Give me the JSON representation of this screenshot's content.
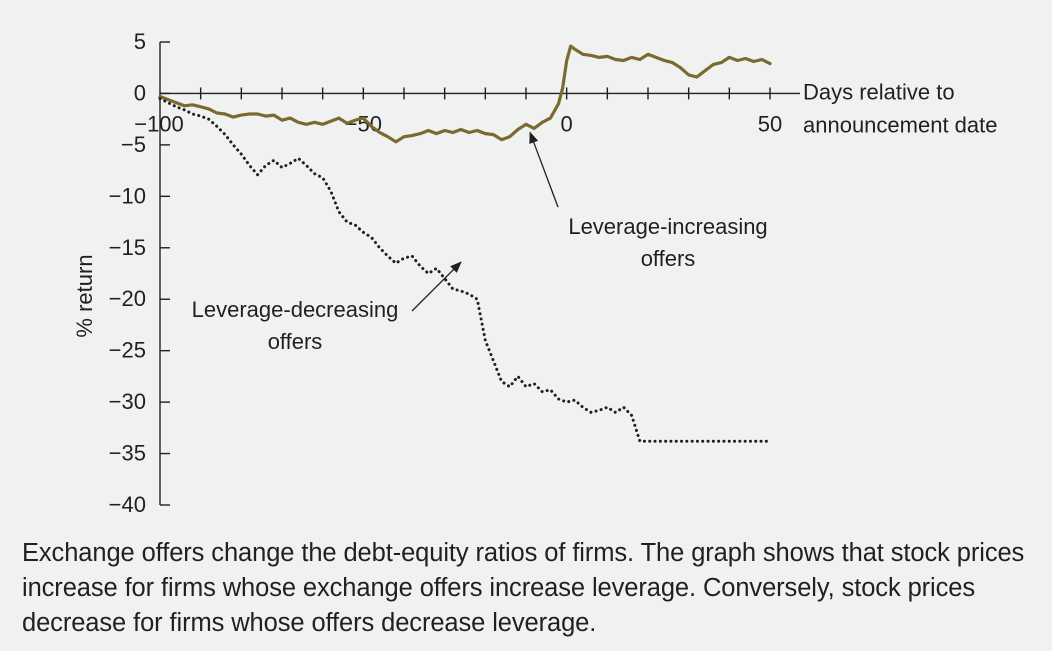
{
  "chart_data": {
    "type": "line",
    "title": "",
    "xlabel": "Days relative to announcement date",
    "ylabel": "% return",
    "xlim": [
      -100,
      50
    ],
    "ylim": [
      -40,
      5
    ],
    "x_ticks": [
      -100,
      -50,
      0,
      50
    ],
    "x_tick_labels": [
      "−100",
      "−50",
      "0",
      "50"
    ],
    "y_ticks": [
      5,
      0,
      -5,
      -10,
      -15,
      -20,
      -25,
      -30,
      -35,
      -40
    ],
    "y_tick_labels": [
      "5",
      "0",
      "−5",
      "−10",
      "−15",
      "−20",
      "−25",
      "−30",
      "−35",
      "−40"
    ],
    "xlabel_lines": [
      "Days relative to",
      "announcement date"
    ],
    "grid": false,
    "series": [
      {
        "name": "Leverage-increasing offers",
        "label_lines": [
          "Leverage-increasing",
          "offers"
        ],
        "style": "solid",
        "color": "#7a6a2e",
        "x": [
          -100,
          -98,
          -96,
          -94,
          -92,
          -90,
          -88,
          -86,
          -84,
          -82,
          -80,
          -78,
          -76,
          -74,
          -72,
          -70,
          -68,
          -66,
          -64,
          -62,
          -60,
          -58,
          -56,
          -54,
          -52,
          -50,
          -48,
          -46,
          -44,
          -42,
          -40,
          -38,
          -36,
          -34,
          -32,
          -30,
          -28,
          -26,
          -24,
          -22,
          -20,
          -18,
          -16,
          -14,
          -12,
          -10,
          -8,
          -6,
          -4,
          -2,
          -1,
          0,
          1,
          2,
          4,
          6,
          8,
          10,
          12,
          14,
          16,
          18,
          20,
          22,
          24,
          26,
          28,
          30,
          32,
          34,
          36,
          38,
          40,
          42,
          44,
          46,
          48,
          50
        ],
        "values": [
          -0.3,
          -0.6,
          -0.9,
          -1.2,
          -1.1,
          -1.3,
          -1.5,
          -1.9,
          -2.0,
          -2.3,
          -2.1,
          -2.0,
          -2.0,
          -2.2,
          -2.1,
          -2.6,
          -2.4,
          -2.8,
          -3.0,
          -2.8,
          -3.0,
          -2.7,
          -2.4,
          -2.9,
          -2.6,
          -2.4,
          -3.2,
          -3.8,
          -4.2,
          -4.7,
          -4.2,
          -4.1,
          -3.9,
          -3.6,
          -3.9,
          -3.6,
          -3.8,
          -3.5,
          -3.8,
          -3.6,
          -3.9,
          -4.0,
          -4.5,
          -4.2,
          -3.5,
          -3.0,
          -3.4,
          -2.8,
          -2.4,
          -1.0,
          0.5,
          3.2,
          4.6,
          4.3,
          3.8,
          3.7,
          3.5,
          3.6,
          3.3,
          3.2,
          3.5,
          3.3,
          3.8,
          3.5,
          3.2,
          3.0,
          2.5,
          1.8,
          1.6,
          2.2,
          2.8,
          3.0,
          3.5,
          3.2,
          3.4,
          3.1,
          3.3,
          2.9
        ]
      },
      {
        "name": "Leverage-decreasing offers",
        "label_lines": [
          "Leverage-decreasing",
          "offers"
        ],
        "style": "dotted",
        "color": "#231f20",
        "x": [
          -100,
          -98,
          -96,
          -94,
          -92,
          -90,
          -88,
          -86,
          -84,
          -82,
          -80,
          -78,
          -76,
          -74,
          -72,
          -70,
          -68,
          -66,
          -64,
          -62,
          -60,
          -58,
          -56,
          -54,
          -52,
          -50,
          -48,
          -46,
          -44,
          -42,
          -40,
          -38,
          -36,
          -34,
          -32,
          -30,
          -28,
          -26,
          -24,
          -22,
          -20,
          -18,
          -16,
          -14,
          -12,
          -10,
          -8,
          -6,
          -4,
          -2,
          0,
          2,
          4,
          6,
          8,
          10,
          12,
          14,
          16,
          18,
          20,
          22,
          24,
          26,
          28,
          30,
          32,
          34,
          36,
          38,
          40,
          42,
          44,
          46,
          48,
          50
        ],
        "values": [
          -0.5,
          -0.9,
          -1.3,
          -1.6,
          -2.0,
          -2.2,
          -2.5,
          -3.2,
          -4.0,
          -5.0,
          -5.9,
          -7.0,
          -7.9,
          -7.0,
          -6.5,
          -7.2,
          -6.8,
          -6.3,
          -7.0,
          -7.8,
          -8.2,
          -9.5,
          -11.5,
          -12.5,
          -12.8,
          -13.5,
          -14.0,
          -15.0,
          -15.8,
          -16.5,
          -16.0,
          -15.8,
          -16.8,
          -17.5,
          -17.0,
          -18.0,
          -19.0,
          -19.2,
          -19.5,
          -20.0,
          -24.0,
          -26.0,
          -28.0,
          -28.5,
          -27.5,
          -28.5,
          -28.2,
          -29.0,
          -28.8,
          -29.7,
          -30.0,
          -29.8,
          -30.5,
          -31.0,
          -30.8,
          -30.5,
          -31.0,
          -30.5,
          -31.3,
          -33.8,
          -33.8,
          -33.8,
          -33.8,
          -33.8,
          -33.8,
          -33.8,
          -33.8,
          -33.8,
          -33.8,
          -33.8,
          -33.8,
          -33.8,
          -33.8,
          -33.8,
          -33.8,
          -33.8
        ]
      }
    ]
  },
  "caption": "Exchange offers change the debt-equity ratios of firms. The graph shows that stock prices increase for firms whose exchange offers increase leverage. Conversely, stock prices decrease for firms whose offers decrease leverage."
}
